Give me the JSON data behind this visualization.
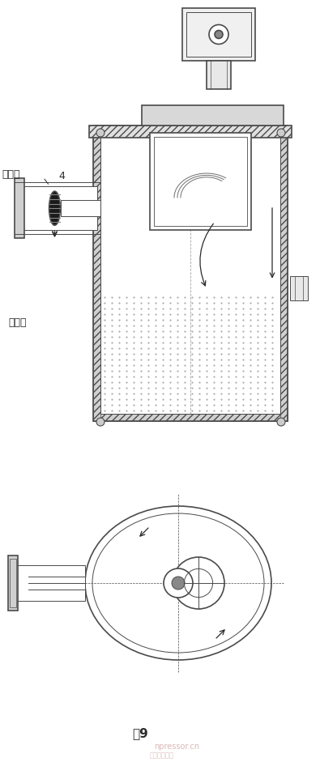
{
  "title": "",
  "caption": "图9",
  "bg_color": "#ffffff",
  "line_color": "#4a4a4a",
  "dark_color": "#2a2a2a",
  "hatch_color": "#888888",
  "label_出风口": "出风口",
  "label_回油口": "回油口",
  "label_num": "4"
}
